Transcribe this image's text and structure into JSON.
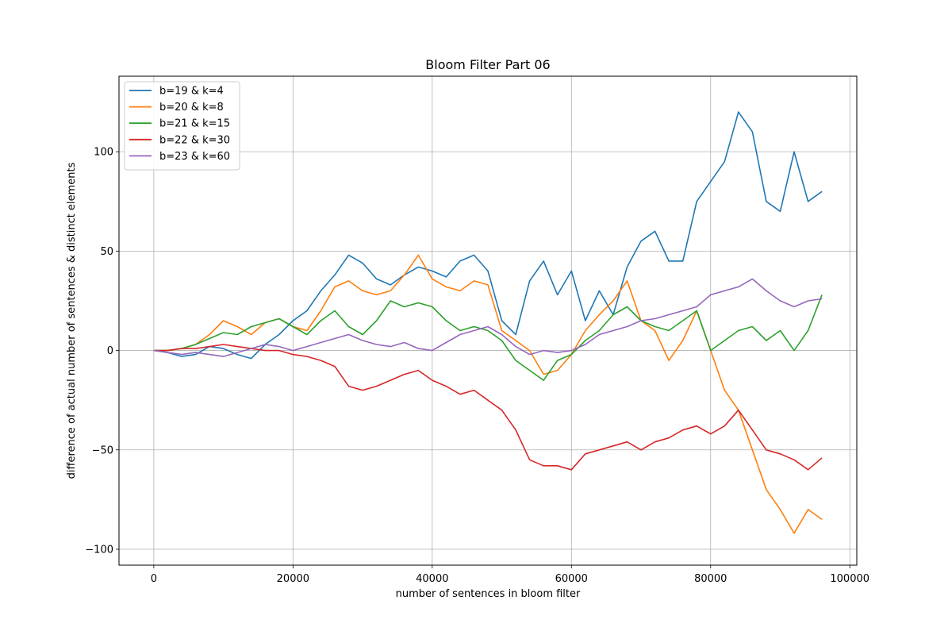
{
  "chart_data": {
    "type": "line",
    "title": "Bloom Filter Part 06",
    "xlabel": "number of sentences in bloom filter",
    "ylabel": "difference of actual number of sentences & distinct elements",
    "xlim": [
      -5000,
      101000
    ],
    "ylim": [
      -108,
      138
    ],
    "xticks": [
      0,
      20000,
      40000,
      60000,
      80000,
      100000
    ],
    "yticks": [
      -100,
      -50,
      0,
      50,
      100
    ],
    "xtick_labels": [
      "0",
      "20000",
      "40000",
      "60000",
      "80000",
      "100000"
    ],
    "ytick_labels": [
      "−100",
      "−50",
      "0",
      "50",
      "100"
    ],
    "grid": true,
    "legend_position": "upper-left",
    "series": [
      {
        "name": "b=19 & k=4",
        "color": "#1f77b4",
        "x": [
          0,
          2000,
          4000,
          6000,
          8000,
          10000,
          12000,
          14000,
          16000,
          18000,
          20000,
          22000,
          24000,
          26000,
          28000,
          30000,
          32000,
          34000,
          36000,
          38000,
          40000,
          42000,
          44000,
          46000,
          48000,
          50000,
          52000,
          54000,
          56000,
          58000,
          60000,
          62000,
          64000,
          66000,
          68000,
          70000,
          72000,
          74000,
          76000,
          78000,
          80000,
          82000,
          84000,
          86000,
          88000,
          90000,
          92000,
          94000,
          96000
        ],
        "y": [
          0,
          -1,
          -3,
          -2,
          2,
          1,
          -2,
          -4,
          3,
          8,
          15,
          20,
          30,
          38,
          48,
          44,
          36,
          33,
          38,
          42,
          40,
          37,
          45,
          48,
          40,
          15,
          8,
          35,
          45,
          28,
          40,
          15,
          30,
          18,
          42,
          55,
          60,
          45,
          45,
          75,
          85,
          95,
          120,
          110,
          75,
          70,
          100,
          75,
          80
        ]
      },
      {
        "name": "b=20 & k=8",
        "color": "#ff7f0e",
        "x": [
          0,
          2000,
          4000,
          6000,
          8000,
          10000,
          12000,
          14000,
          16000,
          18000,
          20000,
          22000,
          24000,
          26000,
          28000,
          30000,
          32000,
          34000,
          36000,
          38000,
          40000,
          42000,
          44000,
          46000,
          48000,
          50000,
          52000,
          54000,
          56000,
          58000,
          60000,
          62000,
          64000,
          66000,
          68000,
          70000,
          72000,
          74000,
          76000,
          78000,
          80000,
          82000,
          84000,
          86000,
          88000,
          90000,
          92000,
          94000,
          96000
        ],
        "y": [
          0,
          0,
          1,
          3,
          8,
          15,
          12,
          8,
          14,
          16,
          12,
          10,
          20,
          32,
          35,
          30,
          28,
          30,
          38,
          48,
          36,
          32,
          30,
          35,
          33,
          10,
          5,
          0,
          -12,
          -10,
          -2,
          10,
          18,
          25,
          35,
          15,
          10,
          -5,
          5,
          20,
          0,
          -20,
          -30,
          -50,
          -70,
          -80,
          -92,
          -80,
          -85
        ]
      },
      {
        "name": "b=21 & k=15",
        "color": "#2ca02c",
        "x": [
          0,
          2000,
          4000,
          6000,
          8000,
          10000,
          12000,
          14000,
          16000,
          18000,
          20000,
          22000,
          24000,
          26000,
          28000,
          30000,
          32000,
          34000,
          36000,
          38000,
          40000,
          42000,
          44000,
          46000,
          48000,
          50000,
          52000,
          54000,
          56000,
          58000,
          60000,
          62000,
          64000,
          66000,
          68000,
          70000,
          72000,
          74000,
          76000,
          78000,
          80000,
          82000,
          84000,
          86000,
          88000,
          90000,
          92000,
          94000,
          96000
        ],
        "y": [
          0,
          0,
          1,
          3,
          6,
          9,
          8,
          12,
          14,
          16,
          12,
          8,
          15,
          20,
          12,
          8,
          15,
          25,
          22,
          24,
          22,
          15,
          10,
          12,
          10,
          5,
          -5,
          -10,
          -15,
          -5,
          -2,
          5,
          10,
          18,
          22,
          15,
          12,
          10,
          15,
          20,
          0,
          5,
          10,
          12,
          5,
          10,
          0,
          10,
          28
        ]
      },
      {
        "name": "b=22 & k=30",
        "color": "#d62728",
        "x": [
          0,
          2000,
          4000,
          6000,
          8000,
          10000,
          12000,
          14000,
          16000,
          18000,
          20000,
          22000,
          24000,
          26000,
          28000,
          30000,
          32000,
          34000,
          36000,
          38000,
          40000,
          42000,
          44000,
          46000,
          48000,
          50000,
          52000,
          54000,
          56000,
          58000,
          60000,
          62000,
          64000,
          66000,
          68000,
          70000,
          72000,
          74000,
          76000,
          78000,
          80000,
          82000,
          84000,
          86000,
          88000,
          90000,
          92000,
          94000,
          96000
        ],
        "y": [
          0,
          0,
          1,
          1,
          2,
          3,
          2,
          1,
          0,
          0,
          -2,
          -3,
          -5,
          -8,
          -18,
          -20,
          -18,
          -15,
          -12,
          -10,
          -15,
          -18,
          -22,
          -20,
          -25,
          -30,
          -40,
          -55,
          -58,
          -58,
          -60,
          -52,
          -50,
          -48,
          -46,
          -50,
          -46,
          -44,
          -40,
          -38,
          -42,
          -38,
          -30,
          -40,
          -50,
          -52,
          -55,
          -60,
          -54
        ]
      },
      {
        "name": "b=23 & k=60",
        "color": "#9467bd",
        "x": [
          0,
          2000,
          4000,
          6000,
          8000,
          10000,
          12000,
          14000,
          16000,
          18000,
          20000,
          22000,
          24000,
          26000,
          28000,
          30000,
          32000,
          34000,
          36000,
          38000,
          40000,
          42000,
          44000,
          46000,
          48000,
          50000,
          52000,
          54000,
          56000,
          58000,
          60000,
          62000,
          64000,
          66000,
          68000,
          70000,
          72000,
          74000,
          76000,
          78000,
          80000,
          82000,
          84000,
          86000,
          88000,
          90000,
          92000,
          94000,
          96000
        ],
        "y": [
          0,
          -1,
          -2,
          -1,
          -2,
          -3,
          -1,
          1,
          3,
          2,
          0,
          2,
          4,
          6,
          8,
          5,
          3,
          2,
          4,
          1,
          0,
          4,
          8,
          10,
          12,
          8,
          2,
          -2,
          0,
          -1,
          0,
          3,
          8,
          10,
          12,
          15,
          16,
          18,
          20,
          22,
          28,
          30,
          32,
          36,
          30,
          25,
          22,
          25,
          26
        ]
      }
    ]
  }
}
